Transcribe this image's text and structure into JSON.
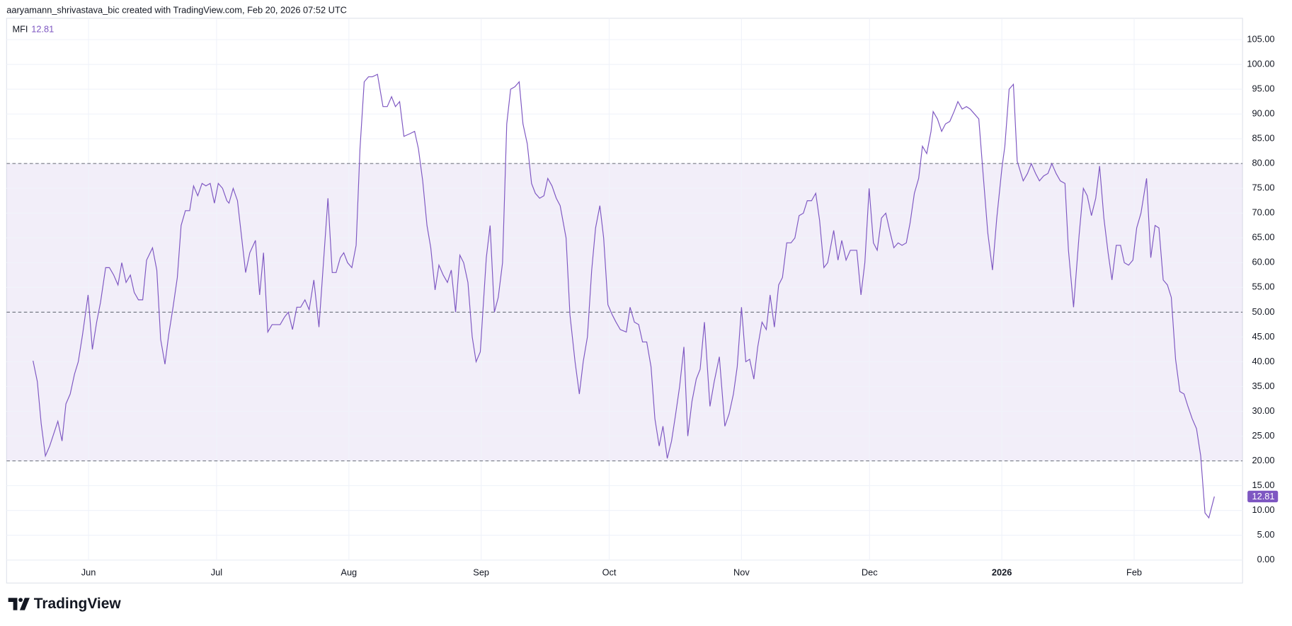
{
  "chart_data": {
    "type": "line",
    "source": "aaryamann_shrivastava_bic created with TradingView.com, Feb 20, 2026 07:52 UTC",
    "logo": "TradingView",
    "xlim": [
      -6.2,
      283.4
    ],
    "ylim": [
      0,
      105
    ],
    "xticks": [
      {
        "value": 13,
        "label": "Jun"
      },
      {
        "value": 43,
        "label": "Jul"
      },
      {
        "value": 74,
        "label": "Aug"
      },
      {
        "value": 105,
        "label": "Sep"
      },
      {
        "value": 135,
        "label": "Oct"
      },
      {
        "value": 166,
        "label": "Nov"
      },
      {
        "value": 196,
        "label": "Dec"
      },
      {
        "value": 227,
        "label": "2026"
      },
      {
        "value": 258,
        "label": "Feb"
      }
    ],
    "yticks": [
      {
        "value": 0,
        "label": "0.00"
      },
      {
        "value": 5,
        "label": "5.00"
      },
      {
        "value": 10,
        "label": "10.00"
      },
      {
        "value": 15,
        "label": "15.00"
      },
      {
        "value": 20,
        "label": "20.00"
      },
      {
        "value": 25,
        "label": "25.00"
      },
      {
        "value": 30,
        "label": "30.00"
      },
      {
        "value": 35,
        "label": "35.00"
      },
      {
        "value": 40,
        "label": "40.00"
      },
      {
        "value": 45,
        "label": "45.00"
      },
      {
        "value": 50,
        "label": "50.00"
      },
      {
        "value": 55,
        "label": "55.00"
      },
      {
        "value": 60,
        "label": "60.00"
      },
      {
        "value": 65,
        "label": "65.00"
      },
      {
        "value": 70,
        "label": "70.00"
      },
      {
        "value": 75,
        "label": "75.00"
      },
      {
        "value": 80,
        "label": "80.00"
      },
      {
        "value": 85,
        "label": "85.00"
      },
      {
        "value": 90,
        "label": "90.00"
      },
      {
        "value": 95,
        "label": "95.00"
      },
      {
        "value": 100,
        "label": "100.00"
      },
      {
        "value": 105,
        "label": "105.00"
      }
    ],
    "hlines": [
      20,
      50,
      80
    ],
    "band_color": "rgba(126,87,194,0.1)",
    "grid": true,
    "series": [
      {
        "name": "MFI",
        "color": "#7e57c2",
        "x": [
          0,
          1.0,
          1.9,
          2.9,
          3.9,
          5.8,
          6.8,
          7.7,
          8.7,
          9.7,
          10.6,
          11.6,
          12.9,
          13.9,
          14.9,
          15.8,
          17.0,
          17.9,
          18.9,
          19.9,
          20.8,
          21.8,
          22.8,
          23.7,
          24.7,
          25.7,
          26.6,
          28.0,
          29.0,
          29.9,
          30.9,
          31.8,
          32.8,
          33.8,
          34.7,
          35.7,
          36.7,
          37.6,
          38.6,
          39.6,
          40.5,
          41.5,
          42.5,
          43.4,
          44.4,
          45.4,
          45.9,
          46.9,
          47.9,
          49.8,
          50.8,
          52.1,
          53.1,
          54.0,
          55.0,
          56.0,
          56.9,
          57.9,
          58.9,
          59.8,
          60.8,
          61.8,
          62.7,
          63.7,
          64.7,
          65.8,
          67.0,
          69.1,
          70.1,
          71.0,
          72.0,
          72.8,
          73.7,
          74.7,
          75.7,
          76.6,
          77.6,
          78.6,
          79.5,
          80.7,
          82.0,
          83.0,
          84.0,
          84.9,
          85.9,
          86.9,
          88.2,
          89.4,
          90.3,
          91.3,
          92.3,
          93.2,
          94.2,
          95.1,
          96.1,
          97.1,
          98.0,
          99.0,
          100.0,
          100.9,
          101.9,
          102.9,
          103.8,
          104.8,
          106.2,
          107.1,
          108.1,
          109.0,
          110.0,
          111.0,
          111.9,
          112.9,
          113.9,
          114.8,
          115.8,
          116.8,
          117.7,
          118.7,
          119.7,
          120.6,
          121.6,
          122.6,
          123.5,
          124.9,
          125.8,
          127.0,
          128.0,
          128.9,
          129.9,
          130.9,
          131.8,
          132.8,
          133.7,
          134.7,
          135.7,
          136.6,
          137.6,
          139.0,
          139.9,
          140.9,
          141.9,
          142.8,
          143.8,
          144.8,
          145.7,
          146.7,
          147.6,
          148.6,
          149.6,
          150.5,
          151.5,
          152.5,
          153.4,
          154.4,
          155.4,
          156.3,
          157.3,
          158.6,
          159.6,
          160.8,
          162.1,
          163.1,
          164.1,
          165.0,
          166.0,
          167.0,
          167.9,
          168.9,
          169.8,
          170.8,
          171.8,
          172.7,
          173.7,
          174.7,
          175.6,
          176.6,
          177.6,
          178.5,
          179.5,
          180.5,
          181.4,
          182.4,
          183.4,
          184.3,
          185.3,
          186.2,
          187.6,
          188.6,
          189.5,
          190.5,
          191.5,
          193.0,
          194.0,
          194.9,
          195.9,
          196.9,
          197.8,
          198.8,
          199.8,
          200.7,
          201.7,
          202.7,
          203.6,
          204.6,
          205.5,
          206.5,
          207.5,
          208.4,
          209.4,
          210.4,
          210.9,
          211.9,
          212.9,
          213.8,
          214.8,
          215.8,
          216.7,
          217.7,
          218.7,
          219.6,
          220.6,
          221.6,
          222.5,
          223.7,
          224.8,
          225.8,
          227.0,
          227.7,
          228.7,
          229.7,
          230.6,
          232.0,
          233.0,
          233.9,
          234.9,
          235.8,
          236.8,
          237.8,
          238.7,
          239.7,
          240.7,
          241.8,
          242.6,
          243.8,
          245.1,
          246.1,
          247.0,
          248.0,
          249.0,
          249.9,
          250.9,
          251.9,
          252.8,
          253.8,
          254.8,
          255.7,
          256.7,
          257.7,
          258.6,
          259.6,
          260.9,
          261.9,
          262.9,
          263.8,
          264.8,
          265.8,
          266.7,
          267.7,
          268.7,
          269.7,
          270.6,
          271.6,
          272.6,
          273.6,
          274.6,
          275.5,
          276.8
        ],
        "values": [
          40.2,
          36,
          27.5,
          21,
          23,
          28,
          24,
          31.5,
          33.5,
          37.5,
          40,
          45.5,
          53.5,
          42.5,
          48,
          52,
          59,
          59,
          57.5,
          55.5,
          60,
          56,
          57.5,
          54,
          52.5,
          52.5,
          60.5,
          63,
          58.5,
          44.5,
          39.5,
          45.5,
          51,
          57,
          67.5,
          70.5,
          70.5,
          75.5,
          73.5,
          76,
          75.5,
          76,
          72,
          76,
          75,
          72.5,
          72,
          75,
          72.5,
          58,
          62,
          64.5,
          53.5,
          62,
          46,
          47.5,
          47.5,
          47.5,
          49,
          50,
          46.5,
          51,
          51,
          52.5,
          50.5,
          56.5,
          47,
          73,
          58,
          58,
          61,
          62,
          60,
          59,
          63.5,
          83,
          96.5,
          97.5,
          97.5,
          98,
          91.5,
          91.5,
          93.5,
          91.5,
          92.5,
          85.5,
          86,
          86.5,
          83,
          76.5,
          67.5,
          63,
          54.5,
          59.5,
          57.5,
          56,
          58.5,
          50,
          61.5,
          60,
          56,
          45,
          40,
          42,
          61,
          67.5,
          50,
          53,
          60,
          88,
          95,
          95.5,
          96.5,
          88,
          84,
          76,
          74,
          73,
          73.5,
          77,
          75.5,
          73,
          71.5,
          65,
          49.5,
          40,
          33.5,
          40,
          45,
          58.5,
          67,
          71.5,
          65,
          51.5,
          49.5,
          48,
          46.5,
          46,
          51,
          48,
          47.5,
          44,
          44,
          39,
          28.5,
          23,
          27,
          20.5,
          24,
          29,
          35,
          43,
          25,
          32,
          36.5,
          38.5,
          48,
          31,
          36,
          41,
          27,
          29.5,
          33.5,
          39,
          51,
          40,
          40.5,
          36.5,
          43,
          48,
          46.5,
          53.5,
          47,
          55.5,
          57,
          64,
          64,
          65,
          69.5,
          70,
          72.5,
          72.5,
          74,
          68.5,
          59,
          60,
          66.5,
          60.5,
          64.5,
          60.5,
          62.5,
          62.5,
          53.5,
          60,
          75,
          64,
          62.5,
          69,
          70,
          66.5,
          63,
          64,
          63.5,
          64,
          68,
          74,
          77,
          83.5,
          82,
          86.5,
          90.5,
          89,
          86.5,
          88,
          88.5,
          90.5,
          92.5,
          91,
          91.5,
          91,
          90,
          89,
          79,
          66,
          58.5,
          69,
          79,
          83.5,
          95,
          96,
          80.5,
          76.5,
          78,
          80,
          78,
          76.5,
          77.5,
          78,
          80,
          78,
          76.5,
          76,
          62.5,
          51,
          65.5,
          75,
          73.5,
          69.5,
          73,
          79.5,
          69,
          62,
          56.5,
          63.5,
          63.5,
          60,
          59.5,
          60.5,
          67,
          70,
          77,
          61,
          67.5,
          67,
          56.5,
          55.5,
          53,
          40.5,
          34,
          33.5,
          31,
          28.5,
          26.5,
          21,
          9.5,
          8.5,
          12.81
        ]
      }
    ]
  }
}
